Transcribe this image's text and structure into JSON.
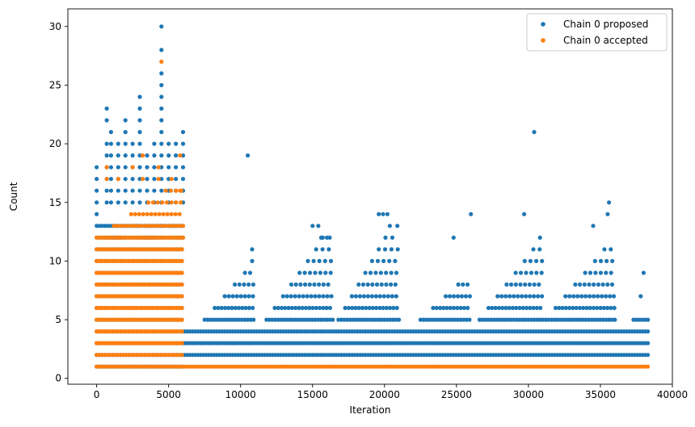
{
  "chart_data": {
    "type": "scatter",
    "title": "",
    "xlabel": "Iteration",
    "ylabel": "Count",
    "xlim": [
      -2000,
      40000
    ],
    "ylim": [
      -0.5,
      31.5
    ],
    "xticks": [
      0,
      5000,
      10000,
      15000,
      20000,
      25000,
      30000,
      35000,
      40000
    ],
    "xtick_labels": [
      "0",
      "5000",
      "10000",
      "15000",
      "20000",
      "25000",
      "30000",
      "35000",
      "40000"
    ],
    "yticks": [
      0,
      5,
      10,
      15,
      20,
      25,
      30
    ],
    "ytick_labels": [
      "0",
      "5",
      "10",
      "15",
      "20",
      "25",
      "30"
    ],
    "grid": false,
    "legend_position": "top-right",
    "series": [
      {
        "name": "Chain 0 proposed",
        "color": "#1f77b4",
        "bands": [
          {
            "y": 1,
            "x": [
              0,
              6000
            ]
          },
          {
            "y": 2,
            "x": [
              0,
              38300
            ]
          },
          {
            "y": 3,
            "x": [
              0,
              38300
            ]
          },
          {
            "y": 4,
            "x": [
              0,
              38300
            ]
          },
          {
            "y": 5,
            "x": [
              0,
              6000
            ]
          },
          {
            "y": 6,
            "x": [
              0,
              6000
            ]
          },
          {
            "y": 7,
            "x": [
              0,
              6000
            ]
          },
          {
            "y": 8,
            "x": [
              0,
              6000
            ]
          },
          {
            "y": 9,
            "x": [
              0,
              6000
            ]
          },
          {
            "y": 10,
            "x": [
              0,
              6000
            ]
          },
          {
            "y": 11,
            "x": [
              0,
              6000
            ]
          },
          {
            "y": 12,
            "x": [
              0,
              6000
            ]
          },
          {
            "y": 13,
            "x": [
              0,
              6000
            ]
          }
        ],
        "clusters": [
          {
            "x": [
              7500,
              11000
            ],
            "ys": [
              5,
              6,
              7,
              8,
              9
            ]
          },
          {
            "x": [
              11800,
              16400
            ],
            "ys": [
              5,
              6,
              7,
              8,
              9,
              10,
              11,
              12
            ]
          },
          {
            "x": [
              16800,
              21000
            ],
            "ys": [
              5,
              6,
              7,
              8,
              9,
              10,
              11,
              12,
              13
            ]
          },
          {
            "x": [
              22500,
              26000
            ],
            "ys": [
              5,
              6,
              7,
              8
            ]
          },
          {
            "x": [
              26600,
              31000
            ],
            "ys": [
              5,
              6,
              7,
              8,
              9,
              10,
              11
            ]
          },
          {
            "x": [
              31200,
              36000
            ],
            "ys": [
              5,
              6,
              7,
              8,
              9,
              10,
              11
            ]
          },
          {
            "x": [
              37300,
              38300
            ],
            "ys": [
              5
            ]
          }
        ],
        "points": [
          [
            0,
            14
          ],
          [
            0,
            15
          ],
          [
            0,
            16
          ],
          [
            0,
            17
          ],
          [
            0,
            18
          ],
          [
            700,
            15
          ],
          [
            700,
            16
          ],
          [
            700,
            17
          ],
          [
            700,
            18
          ],
          [
            700,
            19
          ],
          [
            700,
            20
          ],
          [
            700,
            22
          ],
          [
            700,
            23
          ],
          [
            1000,
            15
          ],
          [
            1000,
            16
          ],
          [
            1000,
            17
          ],
          [
            1000,
            18
          ],
          [
            1000,
            19
          ],
          [
            1000,
            20
          ],
          [
            1000,
            21
          ],
          [
            1500,
            15
          ],
          [
            1500,
            16
          ],
          [
            1500,
            17
          ],
          [
            1500,
            18
          ],
          [
            1500,
            19
          ],
          [
            1500,
            20
          ],
          [
            2000,
            15
          ],
          [
            2000,
            16
          ],
          [
            2000,
            17
          ],
          [
            2000,
            18
          ],
          [
            2000,
            19
          ],
          [
            2000,
            20
          ],
          [
            2000,
            21
          ],
          [
            2000,
            22
          ],
          [
            2500,
            15
          ],
          [
            2500,
            16
          ],
          [
            2500,
            17
          ],
          [
            2500,
            18
          ],
          [
            2500,
            19
          ],
          [
            2500,
            20
          ],
          [
            3000,
            15
          ],
          [
            3000,
            16
          ],
          [
            3000,
            17
          ],
          [
            3000,
            18
          ],
          [
            3000,
            19
          ],
          [
            3000,
            20
          ],
          [
            3000,
            21
          ],
          [
            3000,
            22
          ],
          [
            3000,
            23
          ],
          [
            3000,
            24
          ],
          [
            3500,
            15
          ],
          [
            3500,
            16
          ],
          [
            3500,
            17
          ],
          [
            3500,
            18
          ],
          [
            3500,
            19
          ],
          [
            4000,
            15
          ],
          [
            4000,
            16
          ],
          [
            4000,
            17
          ],
          [
            4000,
            18
          ],
          [
            4000,
            19
          ],
          [
            4000,
            20
          ],
          [
            4500,
            15
          ],
          [
            4500,
            16
          ],
          [
            4500,
            17
          ],
          [
            4500,
            18
          ],
          [
            4500,
            19
          ],
          [
            4500,
            20
          ],
          [
            4500,
            21
          ],
          [
            4500,
            22
          ],
          [
            4500,
            23
          ],
          [
            4500,
            24
          ],
          [
            4500,
            25
          ],
          [
            4500,
            26
          ],
          [
            4500,
            28
          ],
          [
            4500,
            30
          ],
          [
            5000,
            15
          ],
          [
            5000,
            16
          ],
          [
            5000,
            17
          ],
          [
            5000,
            18
          ],
          [
            5000,
            19
          ],
          [
            5000,
            20
          ],
          [
            5500,
            15
          ],
          [
            5500,
            16
          ],
          [
            5500,
            17
          ],
          [
            5500,
            18
          ],
          [
            5500,
            19
          ],
          [
            5500,
            20
          ],
          [
            6000,
            15
          ],
          [
            6000,
            16
          ],
          [
            6000,
            17
          ],
          [
            6000,
            18
          ],
          [
            6000,
            19
          ],
          [
            6000,
            20
          ],
          [
            6000,
            21
          ],
          [
            10500,
            19
          ],
          [
            10800,
            10
          ],
          [
            10800,
            11
          ],
          [
            15000,
            13
          ],
          [
            15400,
            13
          ],
          [
            15600,
            12
          ],
          [
            16000,
            12
          ],
          [
            19600,
            14
          ],
          [
            19900,
            14
          ],
          [
            20200,
            14
          ],
          [
            24800,
            12
          ],
          [
            26000,
            14
          ],
          [
            29700,
            14
          ],
          [
            30400,
            21
          ],
          [
            30800,
            12
          ],
          [
            34500,
            13
          ],
          [
            35500,
            14
          ],
          [
            35600,
            15
          ],
          [
            37800,
            7
          ],
          [
            38000,
            9
          ]
        ]
      },
      {
        "name": "Chain 0 accepted",
        "color": "#ff7f0e",
        "bands": [
          {
            "y": 1,
            "x": [
              0,
              38300
            ]
          },
          {
            "y": 2,
            "x": [
              0,
              6000
            ]
          },
          {
            "y": 3,
            "x": [
              0,
              6000
            ]
          },
          {
            "y": 4,
            "x": [
              0,
              6000
            ]
          },
          {
            "y": 5,
            "x": [
              0,
              6000
            ]
          },
          {
            "y": 6,
            "x": [
              0,
              6000
            ]
          },
          {
            "y": 7,
            "x": [
              0,
              6000
            ]
          },
          {
            "y": 8,
            "x": [
              0,
              6000
            ]
          },
          {
            "y": 9,
            "x": [
              0,
              6000
            ]
          },
          {
            "y": 10,
            "x": [
              0,
              6000
            ]
          },
          {
            "y": 11,
            "x": [
              0,
              6000
            ]
          }
        ],
        "clusters": [
          {
            "x": [
              0,
              6000
            ],
            "ys": [
              12,
              13,
              14,
              15,
              16
            ]
          }
        ],
        "points": [
          [
            700,
            17
          ],
          [
            700,
            18
          ],
          [
            1500,
            17
          ],
          [
            2500,
            18
          ],
          [
            3200,
            17
          ],
          [
            3200,
            19
          ],
          [
            4300,
            17
          ],
          [
            4300,
            18
          ],
          [
            4500,
            27
          ],
          [
            5200,
            17
          ],
          [
            5800,
            16
          ],
          [
            5800,
            19
          ]
        ]
      }
    ]
  }
}
